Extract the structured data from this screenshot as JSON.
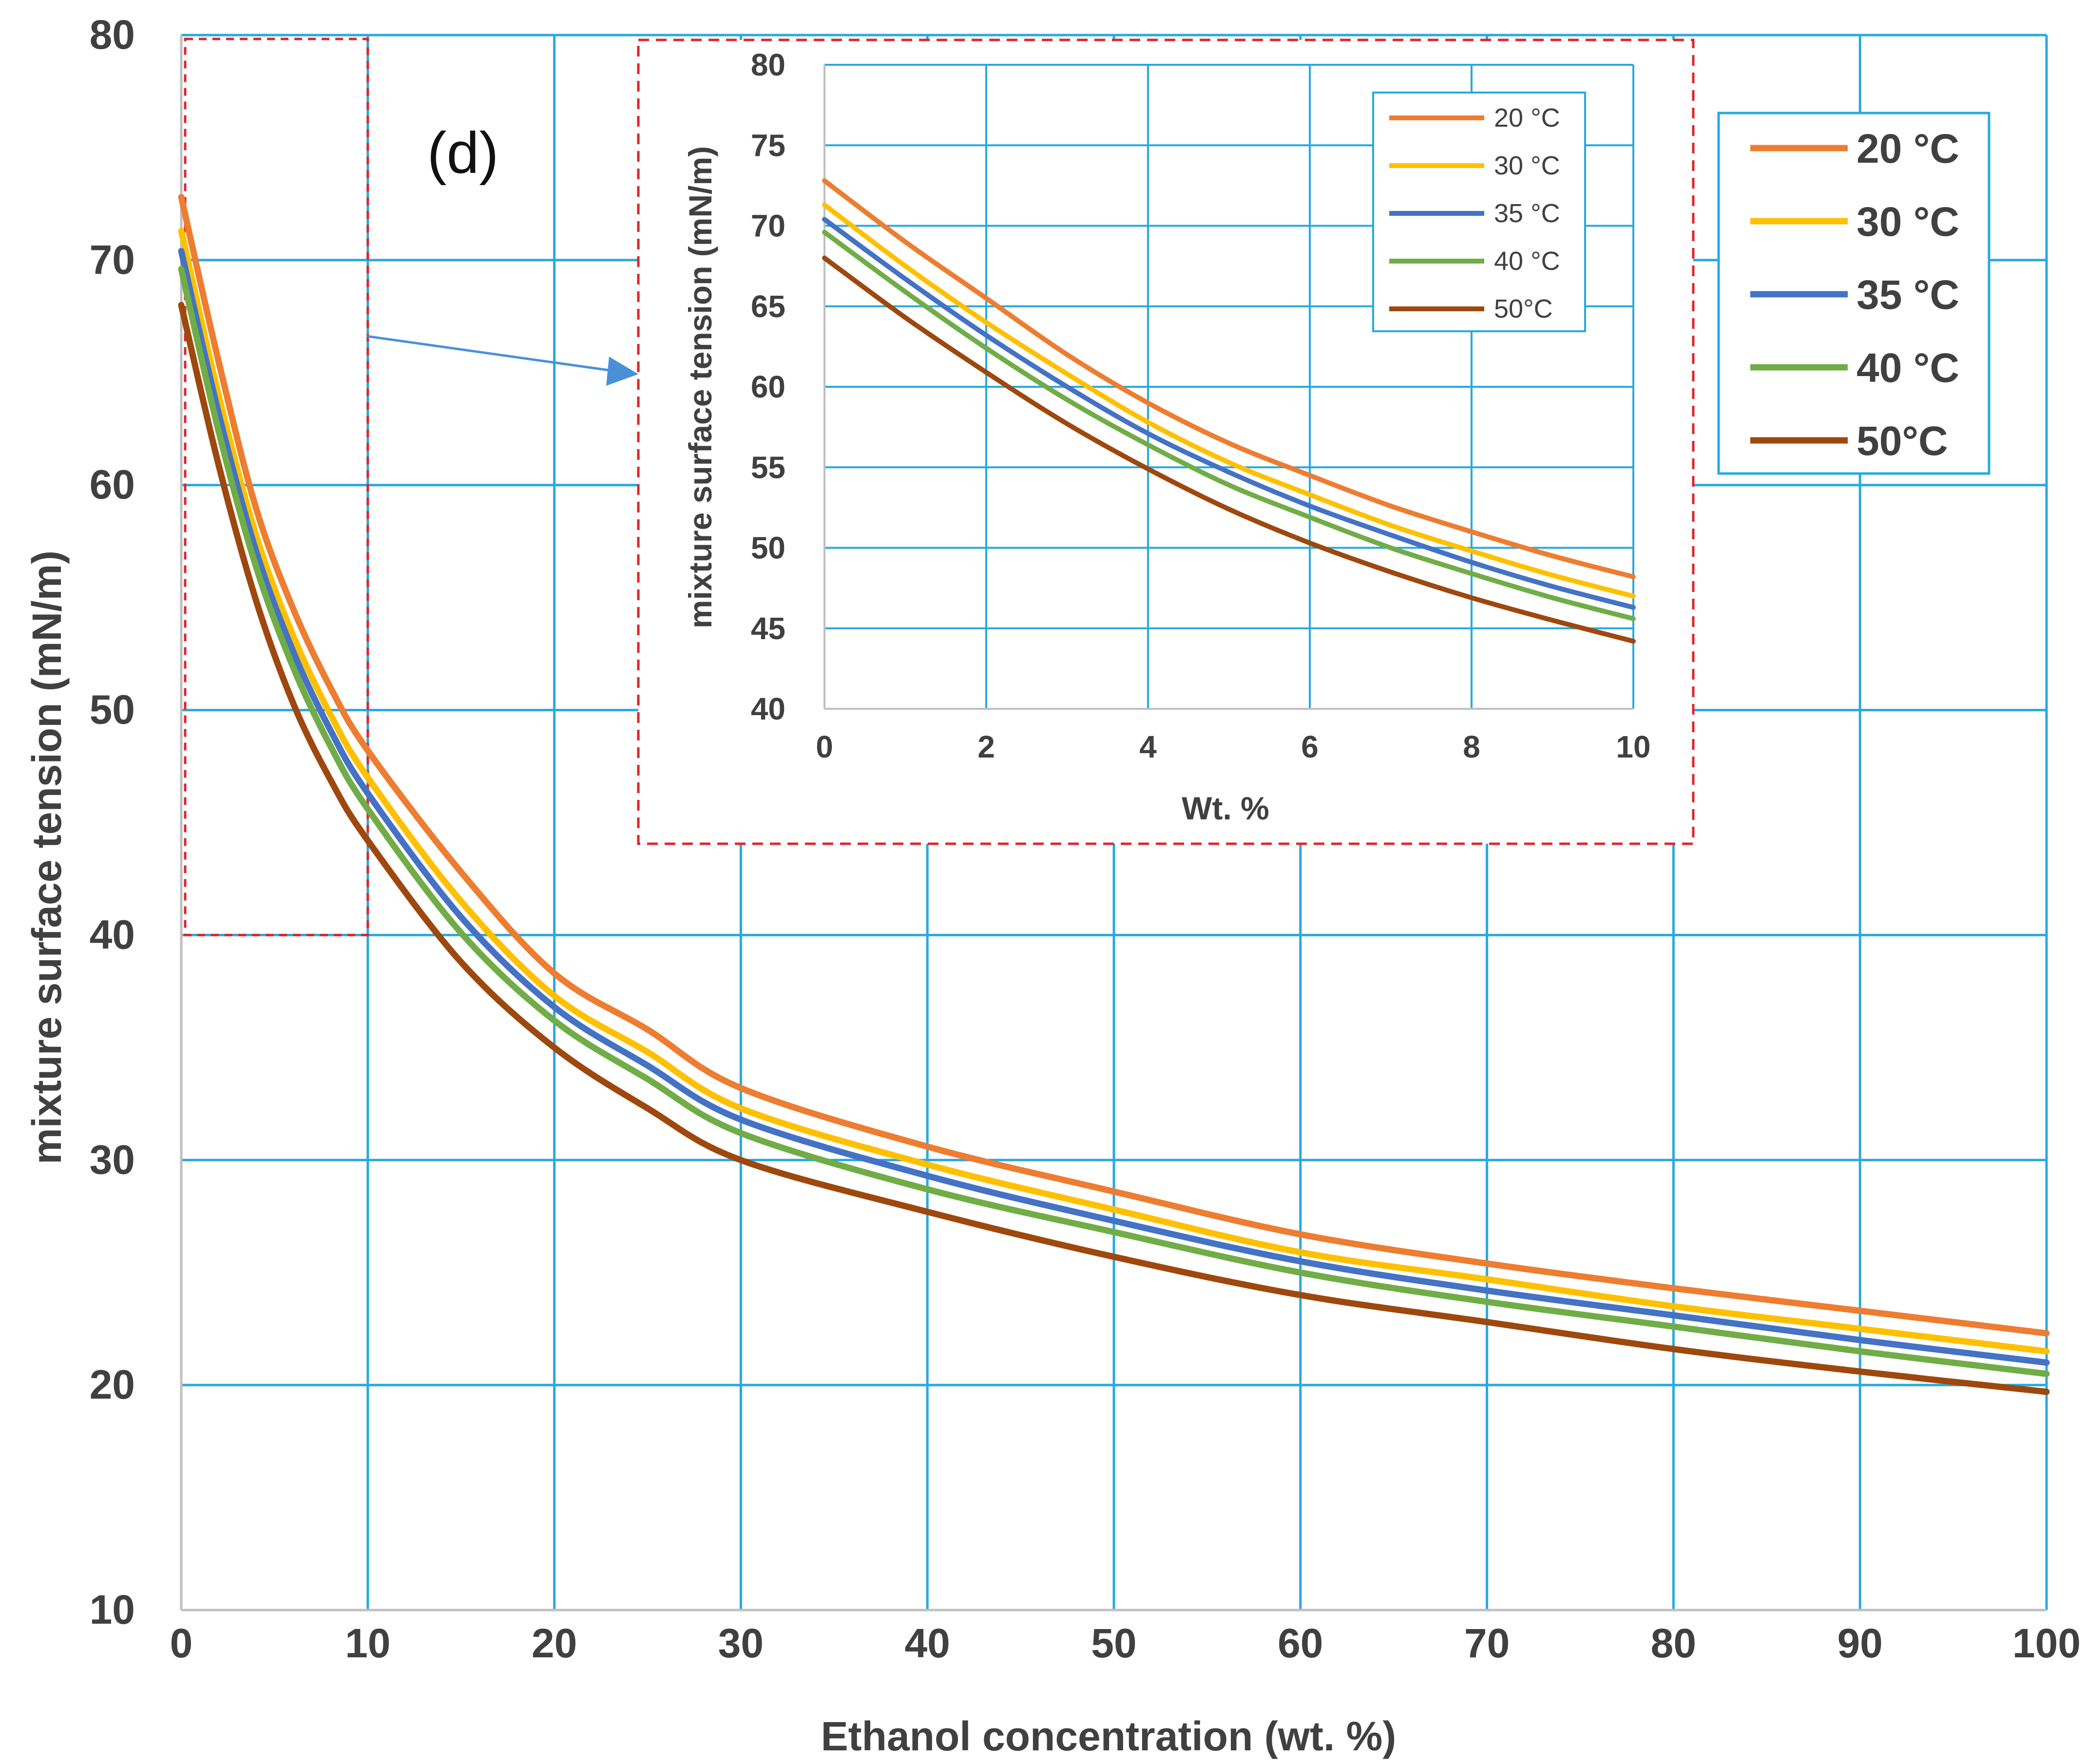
{
  "panel_label": "(d)",
  "colors": {
    "grid": "#27a9e1",
    "axis": "#bfbfbf",
    "highlight_box": "#e2232b",
    "arrow": "#4a90d9",
    "legend_border": "#27a9e1"
  },
  "chart_data": [
    {
      "type": "line",
      "name": "main",
      "title": "",
      "xlabel": "Ethanol concentration (wt. %)",
      "ylabel": "mixture surface tension (mN/m)",
      "xlim": [
        0,
        100
      ],
      "ylim": [
        10,
        80
      ],
      "xticks": [
        0,
        10,
        20,
        30,
        40,
        50,
        60,
        70,
        80,
        90,
        100
      ],
      "yticks": [
        10,
        20,
        30,
        40,
        50,
        60,
        70,
        80
      ],
      "xtick_labels": [
        "0",
        "10",
        "20",
        "30",
        "40",
        "50",
        "60",
        "70",
        "80",
        "90",
        "100"
      ],
      "ytick_labels": [
        "10",
        "20",
        "30",
        "40",
        "50",
        "60",
        "70",
        "80"
      ],
      "grid": true,
      "legend_position": "top-right",
      "highlight_region": {
        "x": [
          0,
          10
        ],
        "y": [
          40,
          80
        ]
      },
      "x": [
        0,
        2,
        4,
        6,
        8,
        10,
        15,
        20,
        25,
        30,
        40,
        50,
        60,
        70,
        80,
        90,
        100
      ],
      "series": [
        {
          "name": "20 °C",
          "color": "#ed7d31",
          "values": [
            72.8,
            65.5,
            59.0,
            54.5,
            51.0,
            48.2,
            42.8,
            38.3,
            35.8,
            33.2,
            30.6,
            28.6,
            26.7,
            25.4,
            24.3,
            23.3,
            22.3
          ]
        },
        {
          "name": "30 °C",
          "color": "#ffc000",
          "values": [
            71.3,
            64.0,
            57.8,
            53.3,
            49.8,
            47.0,
            41.5,
            37.3,
            34.8,
            32.3,
            29.8,
            27.8,
            25.9,
            24.7,
            23.5,
            22.5,
            21.5
          ]
        },
        {
          "name": "35 °C",
          "color": "#4472c4",
          "values": [
            70.4,
            63.2,
            57.1,
            52.6,
            49.1,
            46.3,
            40.8,
            36.8,
            34.2,
            31.8,
            29.3,
            27.3,
            25.5,
            24.2,
            23.1,
            22.0,
            21.0
          ]
        },
        {
          "name": "40 °C",
          "color": "#70ad47",
          "values": [
            69.6,
            62.4,
            56.4,
            51.9,
            48.4,
            45.6,
            40.1,
            36.2,
            33.6,
            31.2,
            28.7,
            26.8,
            25.0,
            23.7,
            22.6,
            21.5,
            20.5
          ]
        },
        {
          "name": "50°C",
          "color": "#9e480e",
          "values": [
            68.0,
            60.9,
            54.9,
            50.3,
            46.9,
            44.2,
            38.8,
            35.0,
            32.3,
            30.0,
            27.7,
            25.7,
            24.0,
            22.8,
            21.6,
            20.6,
            19.7
          ]
        }
      ]
    },
    {
      "type": "line",
      "name": "inset",
      "title": "",
      "xlabel": "Wt. %",
      "ylabel": "mixture surface tension (mN/m)",
      "xlim": [
        0,
        10
      ],
      "ylim": [
        40,
        80
      ],
      "xticks": [
        0,
        2,
        4,
        6,
        8,
        10
      ],
      "yticks": [
        40,
        45,
        50,
        55,
        60,
        65,
        70,
        75,
        80
      ],
      "xtick_labels": [
        "0",
        "2",
        "4",
        "6",
        "8",
        "10"
      ],
      "ytick_labels": [
        "40",
        "45",
        "50",
        "55",
        "60",
        "65",
        "70",
        "75",
        "80"
      ],
      "grid": true,
      "legend_position": "top-right",
      "x": [
        0,
        1,
        2,
        3,
        4,
        5,
        6,
        7,
        8,
        9,
        10
      ],
      "series": [
        {
          "name": "20 °C",
          "color": "#ed7d31",
          "values": [
            72.8,
            69.0,
            65.5,
            62.0,
            59.0,
            56.5,
            54.5,
            52.6,
            51.0,
            49.5,
            48.2
          ]
        },
        {
          "name": "30 °C",
          "color": "#ffc000",
          "values": [
            71.3,
            67.5,
            64.0,
            60.8,
            57.8,
            55.3,
            53.3,
            51.4,
            49.8,
            48.3,
            47.0
          ]
        },
        {
          "name": "35 °C",
          "color": "#4472c4",
          "values": [
            70.4,
            66.7,
            63.2,
            60.0,
            57.1,
            54.7,
            52.6,
            50.8,
            49.1,
            47.6,
            46.3
          ]
        },
        {
          "name": "40 °C",
          "color": "#70ad47",
          "values": [
            69.6,
            65.9,
            62.4,
            59.2,
            56.4,
            53.9,
            51.9,
            50.0,
            48.4,
            46.9,
            45.6
          ]
        },
        {
          "name": "50°C",
          "color": "#9e480e",
          "values": [
            68.0,
            64.3,
            60.9,
            57.7,
            54.9,
            52.4,
            50.3,
            48.5,
            46.9,
            45.5,
            44.2
          ]
        }
      ]
    }
  ]
}
